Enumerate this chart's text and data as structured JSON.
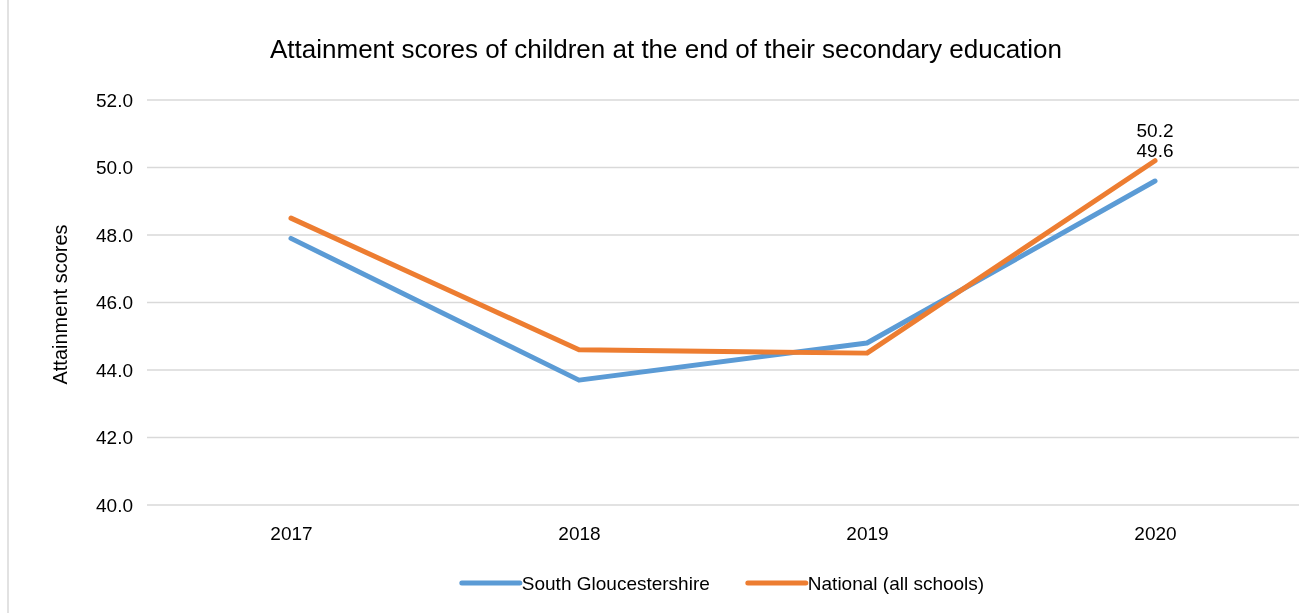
{
  "chart_data": {
    "type": "line",
    "title": "Attainment scores of children at the end of their secondary education",
    "ylabel": "Attainment scores",
    "categories": [
      "2017",
      "2018",
      "2019",
      "2020"
    ],
    "series": [
      {
        "name": "South Gloucestershire",
        "color": "#5b9bd5",
        "values": [
          47.9,
          43.7,
          44.8,
          49.6
        ],
        "value_labels": [
          null,
          null,
          null,
          "49.6"
        ]
      },
      {
        "name": "National (all schools)",
        "color": "#ed7d31",
        "values": [
          48.5,
          44.6,
          44.5,
          50.2
        ],
        "value_labels": [
          null,
          null,
          null,
          "50.2"
        ]
      }
    ],
    "ylim": [
      40,
      52
    ],
    "yticks": [
      {
        "value": 40,
        "label": "40.0"
      },
      {
        "value": 42,
        "label": "42.0"
      },
      {
        "value": 44,
        "label": "44.0"
      },
      {
        "value": 46,
        "label": "46.0"
      },
      {
        "value": 48,
        "label": "48.0"
      },
      {
        "value": 50,
        "label": "50.0"
      },
      {
        "value": 52,
        "label": "52.0"
      }
    ],
    "grid": "y",
    "legend": "bottom",
    "marker": "none",
    "line_style": "solid"
  }
}
